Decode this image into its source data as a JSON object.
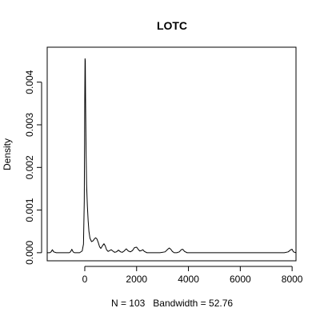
{
  "chart_data": {
    "type": "line",
    "title": "LOTC",
    "xlabel": "N = 103   Bandwidth = 52.76",
    "ylabel": "Density",
    "xlim": [
      -1450,
      8150
    ],
    "ylim": [
      -0.00019,
      0.00482
    ],
    "x_ticks": [
      0,
      2000,
      4000,
      6000,
      8000
    ],
    "x_tick_labels": [
      "0",
      "2000",
      "4000",
      "6000",
      "8000"
    ],
    "y_ticks": [
      0.0,
      0.001,
      0.002,
      0.003,
      0.004
    ],
    "y_tick_labels": [
      "0.000",
      "0.001",
      "0.002",
      "0.003",
      "0.004"
    ],
    "grid": false,
    "legend": "none",
    "series": [
      {
        "x": [
          -1450,
          -1350,
          -1300,
          -1250,
          -1200,
          -1100,
          -600,
          -550,
          -500,
          -450,
          -400,
          -300,
          -200,
          -100,
          -50,
          -20,
          0,
          10,
          20,
          30,
          50,
          70,
          100,
          130,
          160,
          200,
          260,
          320,
          380,
          420,
          470,
          520,
          570,
          620,
          680,
          740,
          790,
          840,
          900,
          960,
          1020,
          1080,
          1150,
          1220,
          1300,
          1380,
          1450,
          1520,
          1600,
          1680,
          1760,
          1840,
          1920,
          2000,
          2060,
          2120,
          2180,
          2240,
          2300,
          2400,
          2500,
          2700,
          2900,
          3100,
          3200,
          3260,
          3320,
          3380,
          3450,
          3550,
          3650,
          3720,
          3780,
          3850,
          3950,
          4200,
          5000,
          6000,
          7000,
          7700,
          7850,
          7950,
          8000,
          8050,
          8150
        ],
        "y": [
          0.0,
          0.0,
          2e-05,
          7e-05,
          2e-05,
          0.0,
          0.0,
          2e-05,
          8e-05,
          2e-05,
          0.0,
          0.0,
          0.0,
          4e-05,
          0.0002,
          0.0012,
          0.0036,
          0.00455,
          0.0045,
          0.0036,
          0.0024,
          0.0016,
          0.0011,
          0.00075,
          0.0005,
          0.00034,
          0.00026,
          0.00028,
          0.00033,
          0.00035,
          0.00032,
          0.00024,
          0.00014,
          0.0001,
          0.00016,
          0.00021,
          0.00016,
          7e-05,
          3e-05,
          5e-05,
          7e-05,
          4e-05,
          1e-05,
          2e-05,
          6e-05,
          2e-05,
          1e-05,
          4e-05,
          9e-05,
          4e-05,
          2e-05,
          5e-05,
          0.00012,
          0.00013,
          8e-05,
          4e-05,
          5e-05,
          7e-05,
          3e-05,
          0.0,
          0.0,
          0.0,
          0.0,
          2e-05,
          8e-05,
          0.00011,
          8e-05,
          3e-05,
          0.0,
          0.0,
          2e-05,
          7e-05,
          8e-05,
          3e-05,
          0.0,
          0.0,
          0.0,
          0.0,
          0.0,
          0.0,
          2e-05,
          7e-05,
          8e-05,
          2e-05,
          0.0
        ]
      }
    ]
  }
}
